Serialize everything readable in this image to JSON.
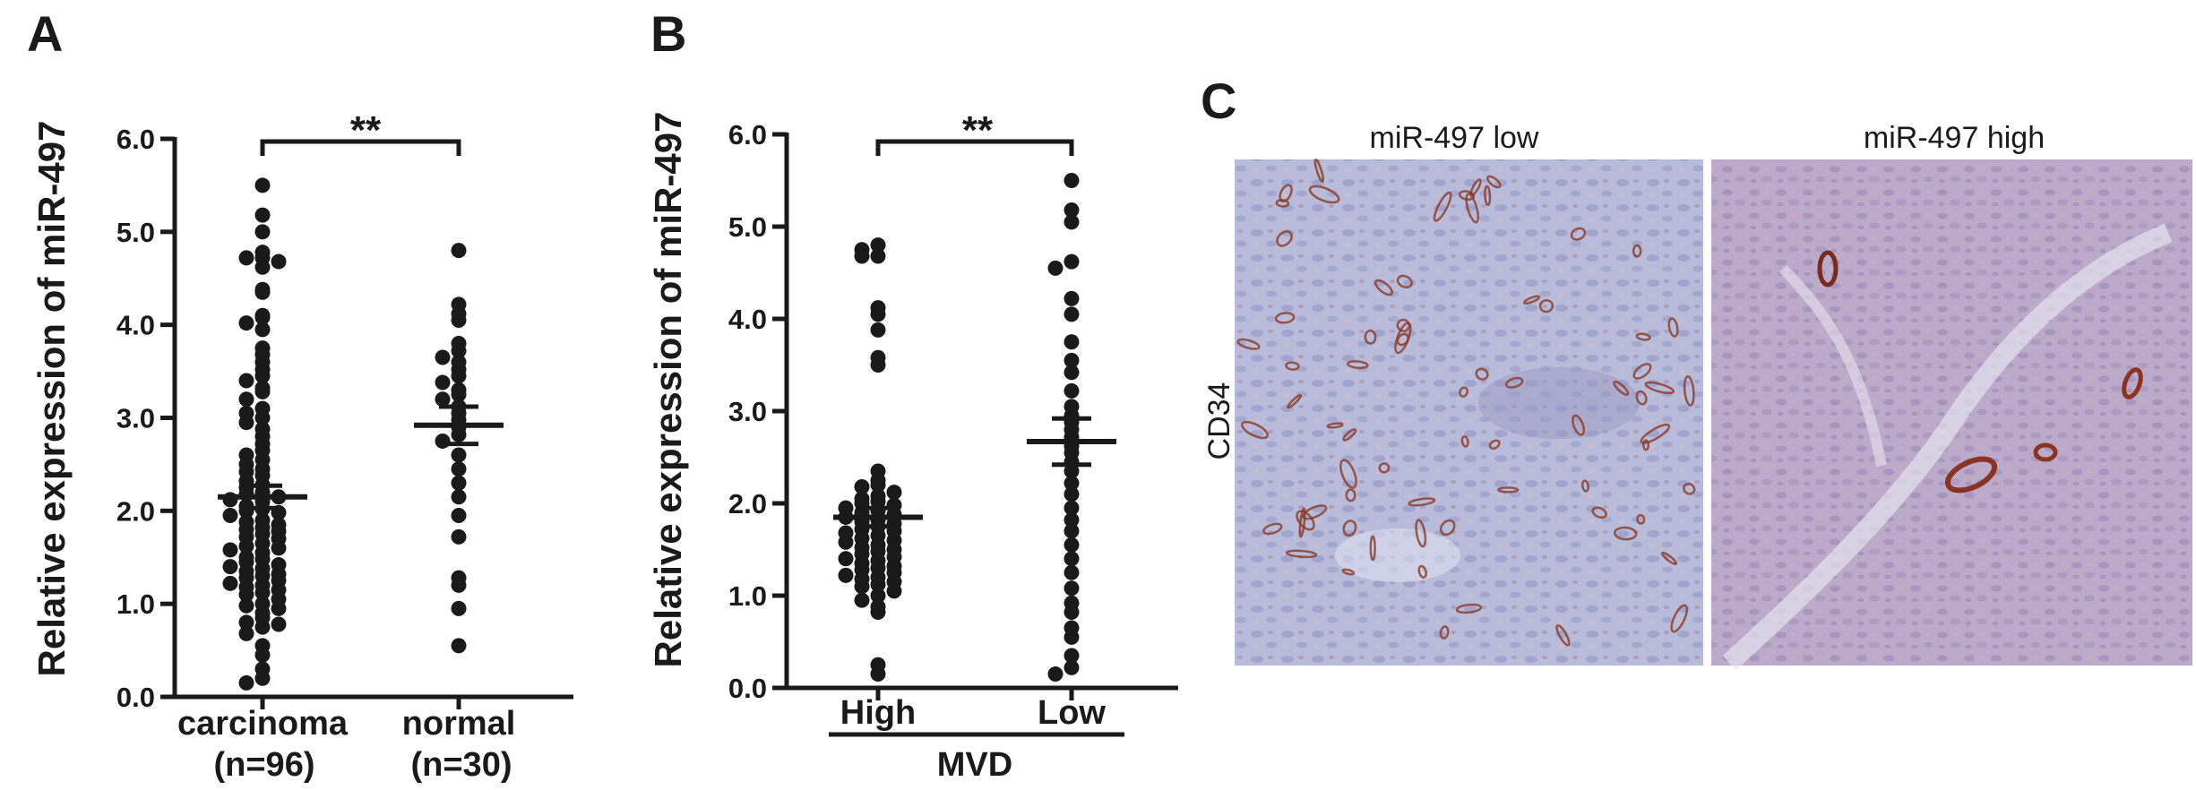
{
  "panels": {
    "a_letter": "A",
    "b_letter": "B",
    "c_letter": "C"
  },
  "chart_data": [
    {
      "type": "scatter",
      "panel": "A",
      "ylabel": "Relative expression of miR-497",
      "ylim": [
        0,
        6
      ],
      "yticks": [
        "0.0",
        "1.0",
        "2.0",
        "3.0",
        "4.0",
        "5.0",
        "6.0"
      ],
      "categories": [
        "carcinoma",
        "normal"
      ],
      "category_n": [
        "(n=96)",
        "(n=30)"
      ],
      "significance": "**",
      "groups": [
        {
          "name": "carcinoma",
          "mean": 2.15,
          "sem": 0.12,
          "values": [
            5.5,
            5.18,
            5.0,
            4.78,
            4.72,
            4.72,
            4.68,
            4.62,
            4.38,
            4.35,
            4.1,
            4.08,
            4.02,
            3.95,
            3.75,
            3.68,
            3.6,
            3.52,
            3.45,
            3.4,
            3.32,
            3.28,
            3.2,
            3.1,
            3.05,
            3.0,
            2.95,
            2.88,
            2.8,
            2.72,
            2.65,
            2.6,
            2.55,
            2.5,
            2.45,
            2.42,
            2.38,
            2.32,
            2.28,
            2.25,
            2.2,
            2.18,
            2.15,
            2.12,
            2.1,
            2.05,
            2.02,
            2.0,
            1.98,
            1.95,
            1.9,
            1.88,
            1.85,
            1.82,
            1.8,
            1.78,
            1.75,
            1.72,
            1.7,
            1.65,
            1.62,
            1.6,
            1.58,
            1.55,
            1.5,
            1.48,
            1.45,
            1.42,
            1.4,
            1.38,
            1.35,
            1.32,
            1.3,
            1.28,
            1.25,
            1.22,
            1.2,
            1.18,
            1.15,
            1.12,
            1.1,
            1.05,
            1.0,
            0.98,
            0.95,
            0.9,
            0.85,
            0.8,
            0.78,
            0.75,
            0.68,
            0.55,
            0.45,
            0.3,
            0.2,
            0.15
          ]
        },
        {
          "name": "normal",
          "mean": 2.92,
          "sem": 0.2,
          "values": [
            4.8,
            4.22,
            4.12,
            4.05,
            3.8,
            3.72,
            3.65,
            3.6,
            3.52,
            3.45,
            3.38,
            3.3,
            3.25,
            3.2,
            3.12,
            3.05,
            2.98,
            2.9,
            2.82,
            2.75,
            2.6,
            2.45,
            2.3,
            2.15,
            1.95,
            1.72,
            1.28,
            1.2,
            0.95,
            0.55
          ]
        }
      ]
    },
    {
      "type": "scatter",
      "panel": "B",
      "ylabel": "Relative expression of miR-497",
      "ylim": [
        0,
        6
      ],
      "yticks": [
        "0.0",
        "1.0",
        "2.0",
        "3.0",
        "4.0",
        "5.0",
        "6.0"
      ],
      "categories": [
        "High",
        "Low"
      ],
      "group_label": "MVD",
      "significance": "**",
      "groups": [
        {
          "name": "High",
          "mean": 1.85,
          "sem": 0.1,
          "values": [
            4.8,
            4.75,
            4.68,
            4.68,
            4.12,
            4.05,
            3.88,
            3.58,
            3.5,
            2.35,
            2.25,
            2.2,
            2.18,
            2.12,
            2.08,
            2.05,
            2.02,
            2.0,
            1.98,
            1.95,
            1.92,
            1.9,
            1.88,
            1.85,
            1.82,
            1.8,
            1.78,
            1.75,
            1.72,
            1.7,
            1.68,
            1.65,
            1.62,
            1.6,
            1.58,
            1.55,
            1.52,
            1.5,
            1.48,
            1.45,
            1.42,
            1.4,
            1.38,
            1.35,
            1.32,
            1.3,
            1.28,
            1.25,
            1.22,
            1.2,
            1.18,
            1.15,
            1.12,
            1.1,
            1.05,
            1.0,
            0.95,
            0.88,
            0.82,
            0.25,
            0.15
          ]
        },
        {
          "name": "Low",
          "mean": 2.67,
          "sem": 0.25,
          "values": [
            5.5,
            5.18,
            5.05,
            4.62,
            4.55,
            4.22,
            4.05,
            3.75,
            3.55,
            3.42,
            3.22,
            3.05,
            2.95,
            2.88,
            2.8,
            2.72,
            2.62,
            2.55,
            2.45,
            2.35,
            2.22,
            2.1,
            1.95,
            1.82,
            1.7,
            1.55,
            1.4,
            1.25,
            1.08,
            0.92,
            0.82,
            0.65,
            0.55,
            0.35,
            0.22,
            0.15
          ]
        }
      ]
    }
  ],
  "panel_c": {
    "ylabel": "CD34",
    "images": [
      {
        "label": "miR-497 low"
      },
      {
        "label": "miR-497 high"
      }
    ]
  }
}
